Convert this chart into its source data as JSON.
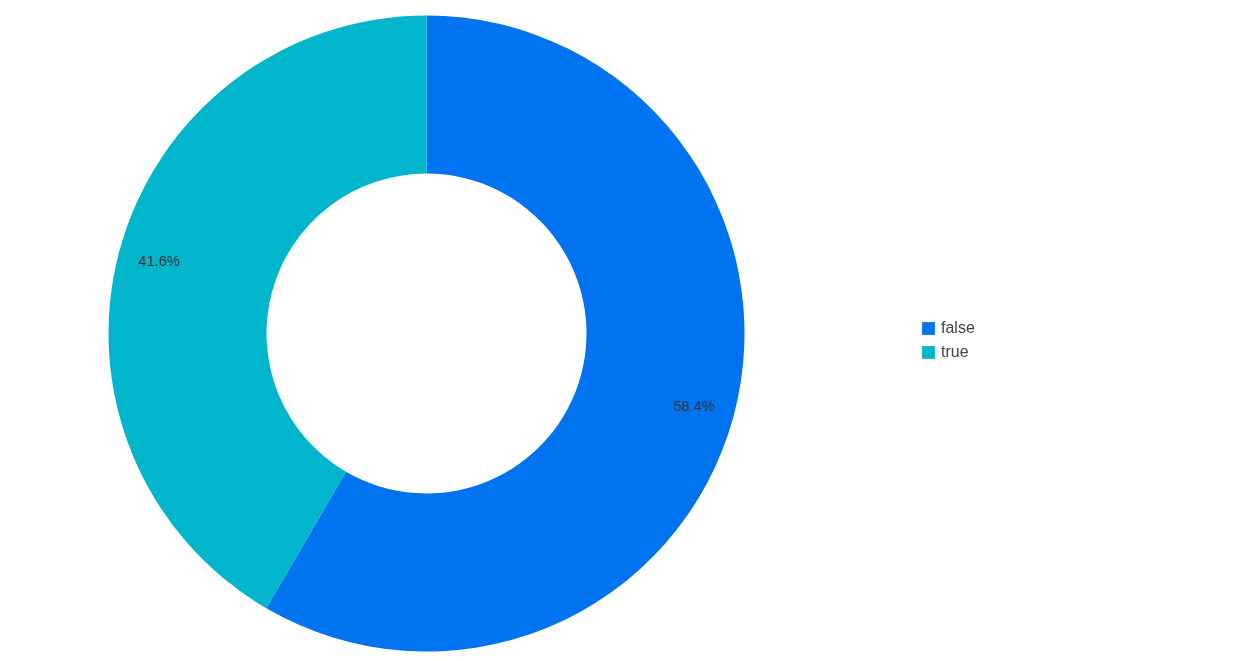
{
  "chart_data": {
    "type": "donut",
    "categories": [
      "false",
      "true"
    ],
    "values": [
      58.4,
      41.6
    ],
    "colors": [
      "#0073f0",
      "#00b5cc"
    ],
    "value_labels": [
      "58.4%",
      "41.6%"
    ],
    "legend": "right"
  }
}
